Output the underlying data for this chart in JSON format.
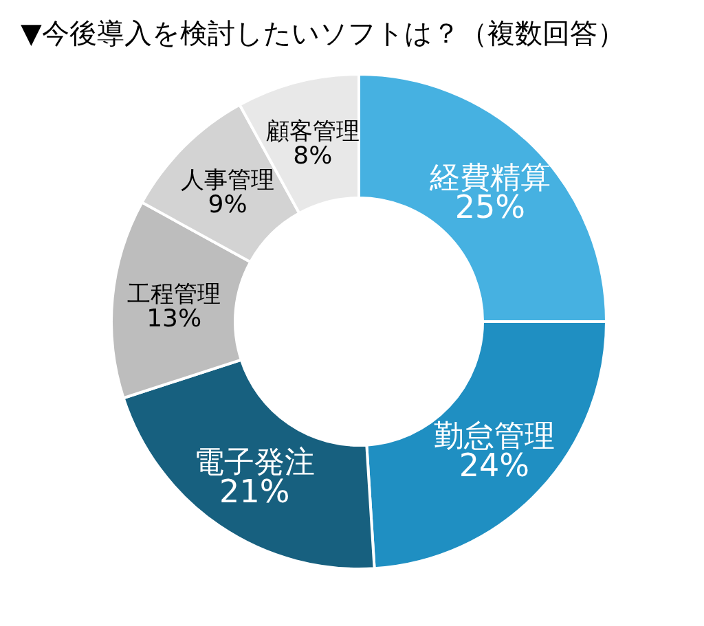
{
  "chart_data": {
    "type": "donut",
    "title": "▼今後導入を検討したいソフトは？（複数回答）",
    "categories": [
      "経費精算",
      "勤怠管理",
      "電子発注",
      "工程管理",
      "人事管理",
      "顧客管理"
    ],
    "values": [
      25,
      24,
      21,
      13,
      9,
      8
    ],
    "colors": [
      "#46b1e1",
      "#1f8fc2",
      "#17607f",
      "#bdbdbd",
      "#d3d3d3",
      "#e8e8e8"
    ],
    "value_labels": [
      "25%",
      "24%",
      "21%",
      "13%",
      "9%",
      "8%"
    ]
  }
}
